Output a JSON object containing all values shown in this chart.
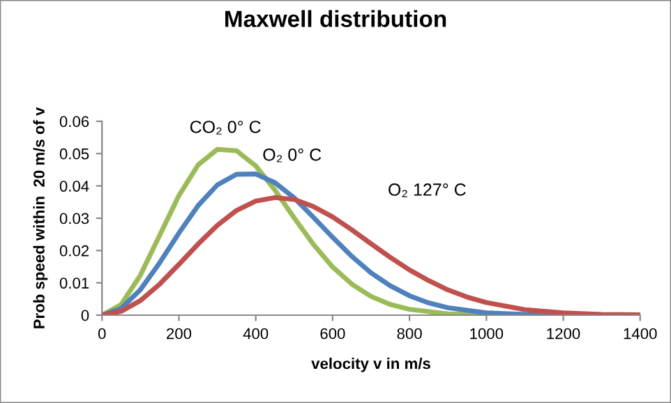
{
  "chart_data": {
    "type": "line",
    "title": "Maxwell distribution",
    "xlabel": "velocity v in m/s",
    "ylabel": "Prob speed within  20 m/s of v",
    "xlim": [
      0,
      1400
    ],
    "xticks": [
      0,
      200,
      400,
      600,
      800,
      1000,
      1200,
      1400
    ],
    "ylim": [
      0,
      0.06
    ],
    "yticks": [
      0,
      0.01,
      0.02,
      0.03,
      0.04,
      0.05,
      0.06
    ],
    "grid": false,
    "marker": "none",
    "line_style": "solid",
    "series": [
      {
        "color": "#9bbb59",
        "x": [
          0,
          50,
          100,
          150,
          200,
          250,
          300,
          350,
          400,
          450,
          500,
          550,
          600,
          650,
          700,
          750,
          800,
          900,
          1000,
          1100
        ],
        "values": [
          0,
          0.0033,
          0.0124,
          0.0247,
          0.037,
          0.0465,
          0.0513,
          0.0509,
          0.0462,
          0.0387,
          0.0301,
          0.0219,
          0.0149,
          0.0096,
          0.0058,
          0.0033,
          0.0018,
          0.0004,
          0.0001,
          0
        ]
      },
      {
        "color": "#4f81bd",
        "x": [
          0,
          50,
          100,
          150,
          200,
          250,
          300,
          350,
          400,
          450,
          500,
          550,
          600,
          650,
          700,
          750,
          800,
          850,
          900,
          1000,
          1100,
          1200,
          1300,
          1400
        ],
        "values": [
          0,
          0.0021,
          0.0079,
          0.0162,
          0.0254,
          0.0339,
          0.0403,
          0.0436,
          0.0437,
          0.041,
          0.0363,
          0.0303,
          0.0241,
          0.0182,
          0.0131,
          0.0091,
          0.006,
          0.0038,
          0.0023,
          0.0007,
          0.0002,
          0.0001,
          0,
          0
        ]
      },
      {
        "color": "#c0504d",
        "x": [
          0,
          50,
          100,
          150,
          200,
          250,
          300,
          350,
          400,
          450,
          500,
          550,
          600,
          650,
          700,
          750,
          800,
          850,
          900,
          950,
          1000,
          1100,
          1200,
          1300,
          1400
        ],
        "values": [
          0,
          0.0012,
          0.0045,
          0.0096,
          0.0157,
          0.022,
          0.0278,
          0.0324,
          0.0353,
          0.0364,
          0.0358,
          0.0336,
          0.0304,
          0.0264,
          0.0221,
          0.0179,
          0.014,
          0.0107,
          0.0078,
          0.0056,
          0.0039,
          0.0017,
          0.0007,
          0.0002,
          0.0001
        ]
      }
    ],
    "annotations": [
      {
        "text": "CO₂ 0° C",
        "x": 321,
        "y": 0.0517
      },
      {
        "text": "O₂ 0° C",
        "x": 377,
        "y": 0.0437
      },
      "O₂ 127° C"
    ]
  }
}
